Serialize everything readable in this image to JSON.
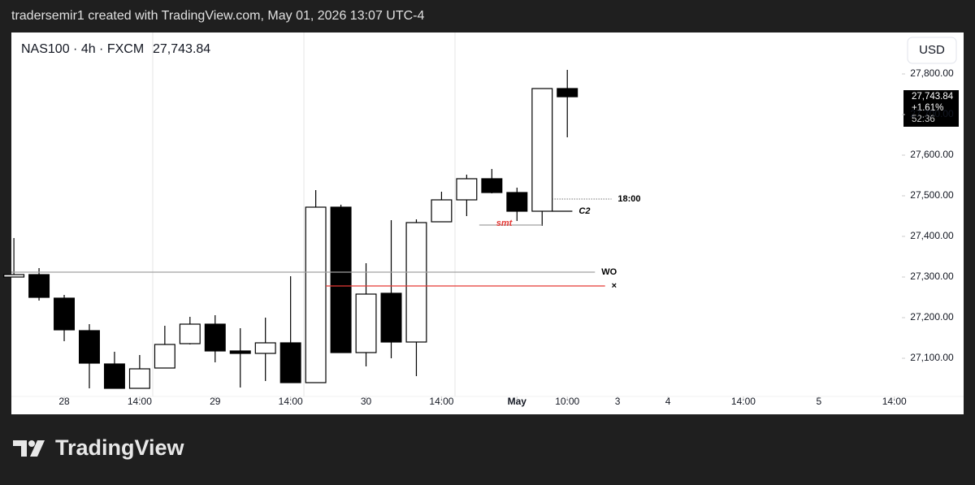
{
  "header": {
    "text": "tradersemir1 created with TradingView.com, May 01, 2026 13:07 UTC-4"
  },
  "chart_data": {
    "type": "candlestick",
    "symbol": "NAS100 · 4h · FXCM",
    "currency": "USD",
    "last_price": {
      "value": 27743.84,
      "label": "27,743.84",
      "change": "+1.61%",
      "countdown": "52:36"
    },
    "x": [
      0,
      1,
      2,
      3,
      4,
      5,
      6,
      7,
      8,
      9,
      10,
      11,
      12,
      13,
      14,
      15,
      16,
      17,
      18,
      19,
      20,
      21,
      22
    ],
    "open": [
      27300,
      27306,
      27248,
      27168,
      27086,
      27026,
      27076,
      27136,
      27184,
      27118,
      27112,
      27138,
      27040,
      27472,
      27114,
      27260,
      27140,
      27436,
      27490,
      27542,
      27508,
      27462,
      27764
    ],
    "high": [
      27396,
      27322,
      27256,
      27184,
      27116,
      27108,
      27180,
      27202,
      27206,
      27174,
      27200,
      27302,
      27514,
      27478,
      27334,
      27440,
      27442,
      27510,
      27552,
      27566,
      27520,
      27764,
      27810
    ],
    "low": [
      27300,
      27242,
      27142,
      27026,
      27026,
      27026,
      27076,
      27134,
      27090,
      27028,
      27044,
      27040,
      27040,
      27114,
      27080,
      27100,
      27056,
      27436,
      27450,
      27506,
      27438,
      27426,
      27644
    ],
    "close": [
      27306,
      27250,
      27170,
      27088,
      27026,
      27074,
      27134,
      27184,
      27118,
      27112,
      27138,
      27040,
      27472,
      27114,
      27258,
      27140,
      27434,
      27490,
      27542,
      27508,
      27462,
      27764,
      27743.84
    ],
    "up_color": "#ffffff",
    "down_color": "#000000",
    "xlim": [
      -0.1,
      35.3
    ],
    "xticks": [
      {
        "value": 2,
        "label": "28"
      },
      {
        "value": 5,
        "label": "14:00"
      },
      {
        "value": 8,
        "label": "29"
      },
      {
        "value": 11,
        "label": "14:00"
      },
      {
        "value": 14,
        "label": "30"
      },
      {
        "value": 17,
        "label": "14:00"
      },
      {
        "value": 20,
        "label": "May"
      },
      {
        "value": 22,
        "label": "10:00"
      },
      {
        "value": 24,
        "label": "3"
      },
      {
        "value": 26,
        "label": "4"
      },
      {
        "value": 29,
        "label": "14:00"
      },
      {
        "value": 32,
        "label": "5"
      },
      {
        "value": 35,
        "label": "14:00"
      }
    ],
    "ylim": [
      27006,
      27902
    ],
    "yticks": [
      {
        "value": 27100,
        "label": "27,100.00"
      },
      {
        "value": 27200,
        "label": "27,200.00"
      },
      {
        "value": 27300,
        "label": "27,300.00"
      },
      {
        "value": 27400,
        "label": "27,400.00"
      },
      {
        "value": 27500,
        "label": "27,500.00"
      },
      {
        "value": 27600,
        "label": "27,600.00"
      },
      {
        "value": 27700,
        "label": "27,700.00"
      },
      {
        "value": 27800,
        "label": "27,800.00"
      }
    ],
    "annotations": [
      {
        "label": "WO",
        "value": 27312,
        "x_start": -0.1,
        "x_end": 23.1,
        "color": "#a0a0a0",
        "label_color": "#000000",
        "style": "solid",
        "label_position": "end"
      },
      {
        "label": "×",
        "value": 27278,
        "x_start": 12.4,
        "x_end": 23.5,
        "color": "#e53935",
        "label_color": "#000000",
        "style": "solid",
        "label_position": "end"
      },
      {
        "label": "18:00",
        "value": 27492,
        "x_start": 21.4,
        "x_end": 23.75,
        "color": "#333333",
        "label_color": "#000000",
        "style": "dotted",
        "label_position": "end"
      },
      {
        "label": "C2",
        "value": 27462,
        "x_start": 21.4,
        "x_end": 22.2,
        "color": "#000000",
        "label_color": "#000000",
        "style": "solid",
        "label_position": "end"
      },
      {
        "label": "smt",
        "value": 27428,
        "x_start": 18.5,
        "x_end": 21,
        "color": "#a0a0a0",
        "label_color": "#e53935",
        "style": "solid",
        "label_position": "middle"
      }
    ]
  },
  "footer": {
    "brand": "TradingView"
  }
}
